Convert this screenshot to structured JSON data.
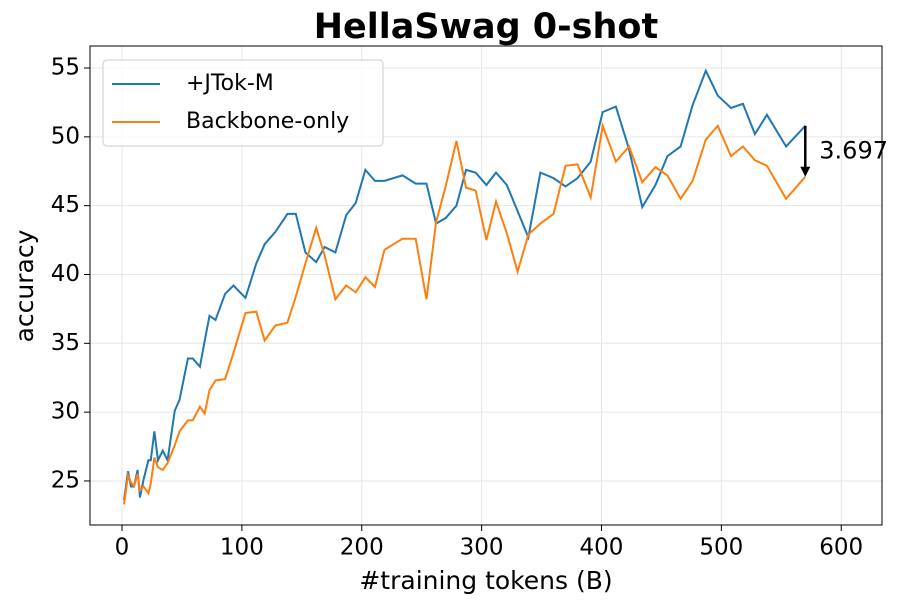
{
  "chart_data": {
    "type": "line",
    "title": "HellaSwag 0-shot",
    "xlabel": "#training tokens (B)",
    "ylabel": "accuracy",
    "x": [
      1.7,
      5,
      7.5,
      10,
      13,
      15,
      18,
      22,
      24,
      27,
      30,
      34,
      38,
      44,
      48,
      55,
      59,
      65,
      69,
      73,
      78,
      86,
      93,
      103,
      112,
      119,
      128,
      138,
      145,
      153,
      162,
      169,
      178,
      187,
      195,
      203,
      211,
      219,
      234,
      245,
      254,
      262,
      270,
      279,
      287,
      295,
      304,
      312,
      321,
      330,
      339,
      349,
      360,
      370,
      380,
      391,
      401,
      412,
      423,
      434,
      445,
      455,
      466,
      476,
      487,
      497,
      508,
      518,
      528,
      538,
      554,
      570
    ],
    "series": [
      {
        "name": "+JTok-M",
        "color": "#1f77b4",
        "values": [
          23.6,
          25.7,
          24.6,
          24.6,
          25.8,
          23.8,
          25.1,
          26.5,
          26.5,
          28.6,
          26.5,
          27.2,
          26.5,
          30.1,
          30.9,
          33.9,
          33.9,
          33.3,
          35.2,
          37.0,
          36.7,
          38.6,
          39.2,
          38.3,
          40.8,
          42.2,
          43.1,
          44.4,
          44.4,
          41.6,
          40.9,
          42.0,
          41.6,
          44.3,
          45.2,
          47.6,
          46.8,
          46.8,
          47.2,
          46.6,
          46.6,
          43.7,
          44.1,
          45.0,
          47.6,
          47.4,
          46.5,
          47.4,
          46.5,
          44.6,
          42.7,
          47.4,
          47.0,
          46.4,
          47.0,
          48.2,
          51.8,
          52.2,
          49.1,
          44.9,
          46.5,
          48.6,
          49.3,
          52.3,
          54.8,
          53.0,
          52.1,
          52.4,
          50.2,
          51.6,
          49.3,
          50.8
        ]
      },
      {
        "name": "Backbone-only",
        "color": "#ff7f0e",
        "values": [
          23.3,
          25.4,
          24.9,
          24.6,
          25.5,
          24.3,
          24.6,
          24.1,
          24.8,
          26.7,
          26.0,
          25.8,
          26.3,
          27.6,
          28.6,
          29.4,
          29.4,
          30.4,
          29.9,
          31.6,
          32.3,
          32.4,
          34.3,
          37.2,
          37.3,
          35.2,
          36.3,
          36.5,
          38.4,
          40.8,
          43.4,
          41.4,
          38.2,
          39.2,
          38.7,
          39.8,
          39.1,
          41.8,
          42.6,
          42.6,
          38.2,
          43.8,
          46.4,
          49.7,
          46.3,
          46.1,
          42.5,
          45.3,
          43.0,
          40.2,
          42.9,
          43.7,
          44.4,
          47.9,
          48.0,
          45.6,
          50.8,
          48.2,
          49.3,
          46.7,
          47.8,
          47.2,
          45.5,
          46.8,
          49.8,
          50.8,
          48.6,
          49.3,
          48.3,
          47.9,
          45.5,
          47.1
        ]
      }
    ],
    "annotation": "3.697",
    "xlim": [
      -26.7,
      634
    ],
    "ylim": [
      21.8,
      56.6
    ],
    "xticks": [
      0,
      100,
      200,
      300,
      400,
      500,
      600
    ],
    "yticks": [
      25,
      30,
      35,
      40,
      45,
      50,
      55
    ],
    "grid": true,
    "legend": "upper left"
  }
}
